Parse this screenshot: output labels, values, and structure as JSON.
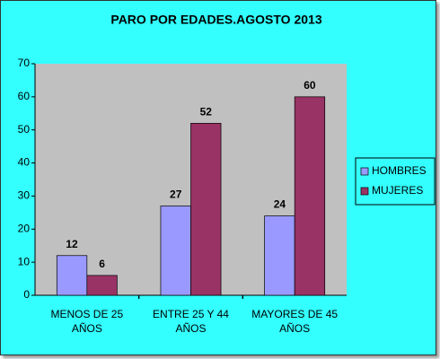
{
  "chart_data": {
    "type": "bar",
    "title": "PARO POR EDADES.AGOSTO 2013",
    "categories": [
      "MENOS DE 25 AÑOS",
      "ENTRE 25 Y 44 AÑOS",
      "MAYORES DE 45 AÑOS"
    ],
    "series": [
      {
        "name": "HOMBRES",
        "color": "#9999ff",
        "values": [
          12,
          27,
          24
        ]
      },
      {
        "name": "MUJERES",
        "color": "#993366",
        "values": [
          6,
          52,
          60
        ]
      }
    ],
    "ylim": [
      0,
      70
    ],
    "yticks": [
      0,
      10,
      20,
      30,
      40,
      50,
      60,
      70
    ],
    "grid": false,
    "legend": "right"
  }
}
